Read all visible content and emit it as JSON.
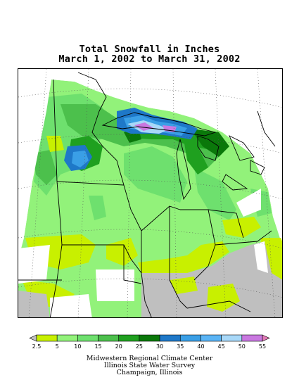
{
  "title": {
    "line1": "Total Snowfall in Inches",
    "line2": "March 1, 2002 to March 31, 2002"
  },
  "legend": {
    "ticks": [
      "2.5",
      "5",
      "10",
      "15",
      "20",
      "25",
      "30",
      "35",
      "40",
      "45",
      "50",
      "55"
    ],
    "colors": [
      "#bfbfbf",
      "#c8f000",
      "#92f27a",
      "#6ee06e",
      "#4cc04c",
      "#1fa01f",
      "#0a780a",
      "#1e78c8",
      "#3a9fe6",
      "#5ab4f5",
      "#a8d8f8",
      "#c978e0",
      "#e07ab4"
    ]
  },
  "credits": {
    "line1": "Midwestern Regional Climate Center",
    "line2": "Illinois State Water Survey",
    "line3": "Champaign, Illinois"
  }
}
